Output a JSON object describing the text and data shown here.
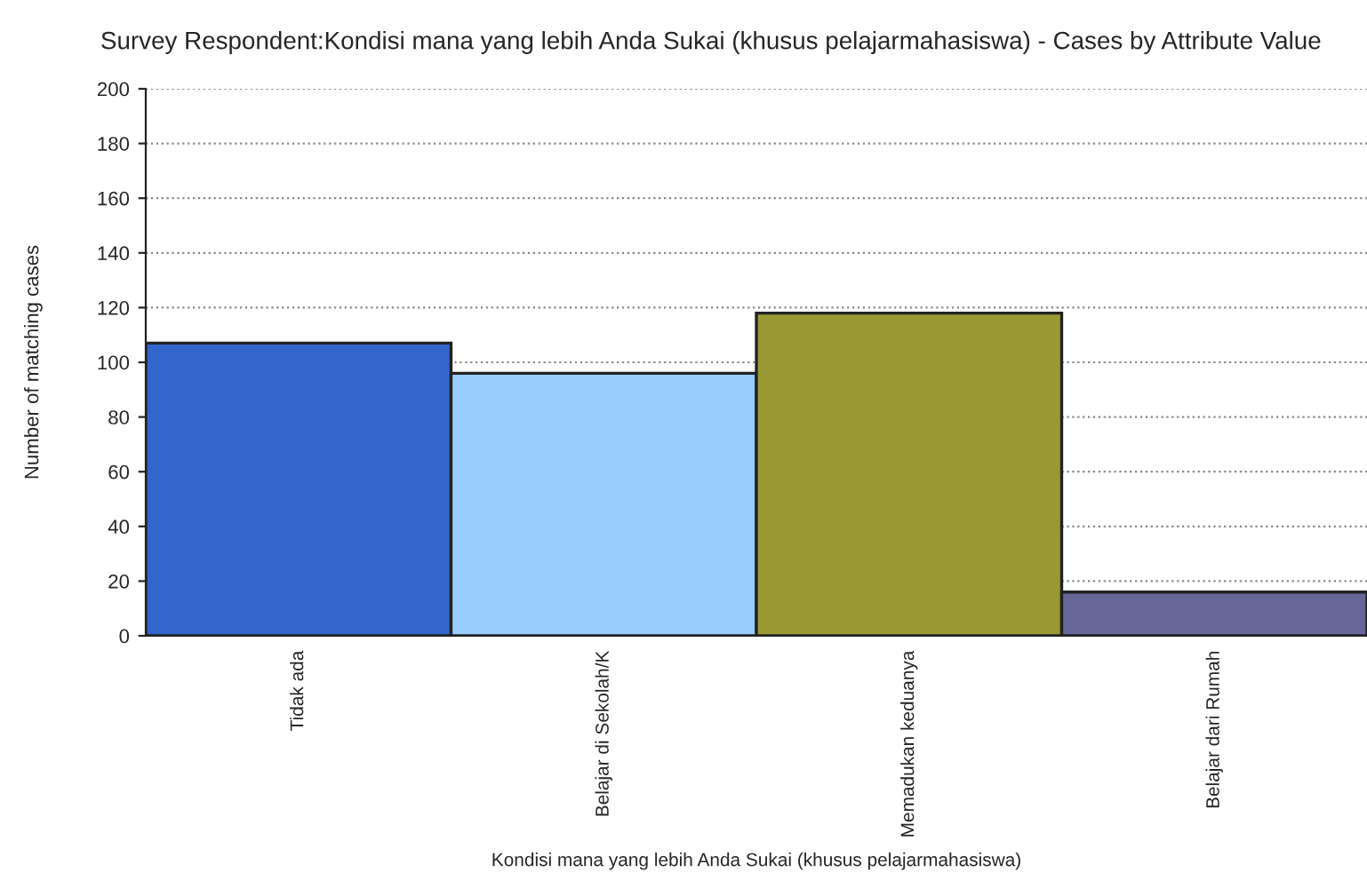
{
  "chart_data": {
    "type": "bar",
    "title": "Survey Respondent:Kondisi mana yang lebih Anda Sukai (khusus pelajarmahasiswa) - Cases by Attribute Value",
    "xlabel": "Kondisi mana yang lebih Anda Sukai (khusus pelajarmahasiswa)",
    "ylabel": "Number of matching cases",
    "categories": [
      "Tidak ada",
      "Belajar di Sekolah/K",
      "Memadukan keduanya",
      "Belajar dari Rumah"
    ],
    "values": [
      107,
      96,
      118,
      16
    ],
    "colors": [
      "#3366cc",
      "#99ccff",
      "#999933",
      "#666699"
    ],
    "ylim": [
      0,
      200
    ],
    "yticks": [
      0,
      20,
      40,
      60,
      80,
      100,
      120,
      140,
      160,
      180,
      200
    ],
    "grid": "y"
  }
}
